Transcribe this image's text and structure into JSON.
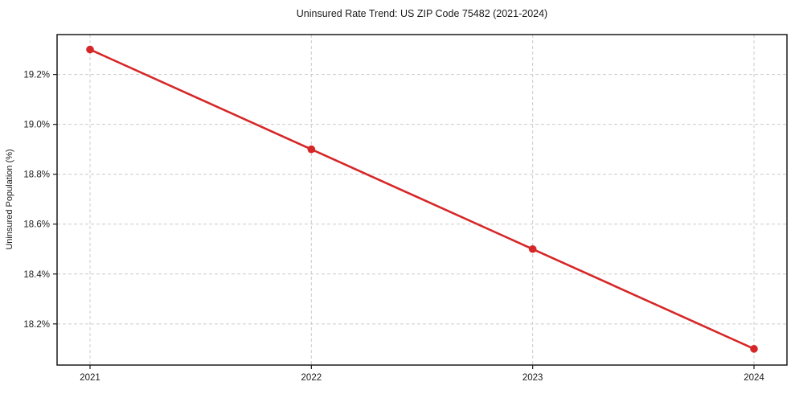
{
  "chart_data": {
    "type": "line",
    "title": "Uninsured Rate Trend: US ZIP Code 75482 (2021-2024)",
    "xlabel": "",
    "ylabel": "Uninsured Population (%)",
    "categories": [
      "2021",
      "2022",
      "2023",
      "2024"
    ],
    "series": [
      {
        "name": "Uninsured rate",
        "values": [
          19.3,
          18.9,
          18.5,
          18.1
        ]
      }
    ],
    "yticks": [
      18.2,
      18.4,
      18.6,
      18.8,
      19.0,
      19.2
    ],
    "ytick_labels": [
      "18.2%",
      "18.4%",
      "18.6%",
      "18.8%",
      "19.0%",
      "19.2%"
    ],
    "ylim": [
      18.035,
      19.36
    ],
    "grid": "dashed-both-axes",
    "legend_position": "none",
    "colors": {
      "line": "#d62728",
      "marker": "#d62728",
      "grid": "#cccccc",
      "frame": "#1a1a1a",
      "background": "#ffffff"
    }
  }
}
